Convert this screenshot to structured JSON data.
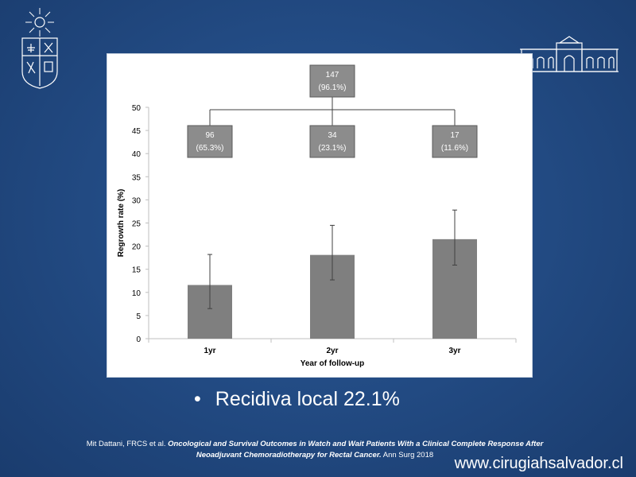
{
  "slide": {
    "bullet_text": "Recidiva local 22.1%",
    "citation_authors": "Mit Dattani, FRCS  et al.",
    "citation_title": "Oncological and Survival Outcomes in Watch and Wait Patients With a Clinical Complete Response After Neoadjuvant Chemoradiotherapy for Rectal Cancer.",
    "citation_journal": "Ann Surg 2018",
    "footer_url": "www.cirugiahsalvador.cl"
  },
  "colors": {
    "bar": "#7f7f7f",
    "box_fill": "#8c8c8c",
    "box_border": "#5a5a5a",
    "axis": "#bfbfbf",
    "text": "#000000"
  },
  "chart_data": {
    "type": "bar",
    "categories": [
      "1yr",
      "2yr",
      "3yr"
    ],
    "values": [
      11.6,
      18.1,
      21.5
    ],
    "error_low": [
      6.5,
      12.7,
      15.9
    ],
    "error_high": [
      18.2,
      24.5,
      27.8
    ],
    "xlabel": "Year of follow-up",
    "ylabel": "Regrowth rate (%)",
    "ylim": [
      0,
      50
    ],
    "yticks": [
      0,
      5,
      10,
      15,
      20,
      25,
      30,
      35,
      40,
      45,
      50
    ],
    "grid": false,
    "flow_boxes": {
      "top": {
        "count": "147",
        "pct": "(96.1%)"
      },
      "branches": [
        {
          "count": "96",
          "pct": "(65.3%)"
        },
        {
          "count": "34",
          "pct": "(23.1%)"
        },
        {
          "count": "17",
          "pct": "(11.6%)"
        }
      ]
    }
  }
}
